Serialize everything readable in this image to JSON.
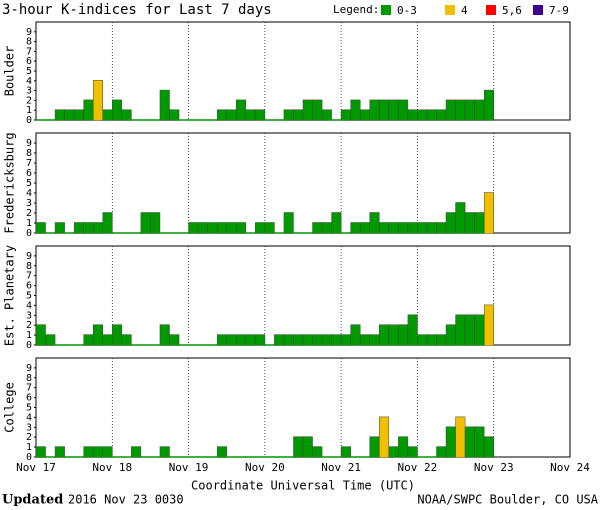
{
  "title": "3-hour K-indices for Last 7 days",
  "legend": {
    "title": "Legend:",
    "items": [
      {
        "label": "0-3",
        "color": "#009900"
      },
      {
        "label": "4",
        "color": "#f0c000"
      },
      {
        "label": "5,6",
        "color": "#ff0000"
      },
      {
        "label": "7-9",
        "color": "#400090"
      }
    ]
  },
  "x_label": "Coordinate Universal Time (UTC)",
  "footer": {
    "updated_label": "Updated",
    "updated": "2016 Nov 23 0030",
    "source": "NOAA/SWPC Boulder, CO USA"
  },
  "chart_data": [
    {
      "type": "bar",
      "y_label": "Boulder",
      "ylim": [
        0,
        10
      ],
      "yticks": [
        0,
        1,
        2,
        3,
        4,
        5,
        6,
        7,
        8,
        9
      ],
      "xlim": [
        0,
        7
      ],
      "xticks": [
        {
          "value": 0,
          "label": "Nov 17"
        },
        {
          "value": 1,
          "label": "Nov 18"
        },
        {
          "value": 2,
          "label": "Nov 19"
        },
        {
          "value": 3,
          "label": "Nov 20"
        },
        {
          "value": 4,
          "label": "Nov 21"
        },
        {
          "value": 5,
          "label": "Nov 22"
        },
        {
          "value": 6,
          "label": "Nov 23"
        },
        {
          "value": 7,
          "label": "Nov 24"
        }
      ],
      "values": [
        0,
        0,
        1,
        1,
        1,
        2,
        4,
        1,
        2,
        1,
        0,
        0,
        0,
        3,
        1,
        0,
        0,
        0,
        0,
        1,
        1,
        2,
        1,
        1,
        0,
        0,
        1,
        1,
        2,
        2,
        1,
        0,
        1,
        2,
        1,
        2,
        2,
        2,
        2,
        1,
        1,
        1,
        1,
        2,
        2,
        2,
        2,
        3
      ]
    },
    {
      "type": "bar",
      "y_label": "Fredericksburg",
      "ylim": [
        0,
        10
      ],
      "yticks": [
        0,
        1,
        2,
        3,
        4,
        5,
        6,
        7,
        8,
        9
      ],
      "xlim": [
        0,
        7
      ],
      "xticks": [
        {
          "value": 0,
          "label": "Nov 17"
        },
        {
          "value": 1,
          "label": "Nov 18"
        },
        {
          "value": 2,
          "label": "Nov 19"
        },
        {
          "value": 3,
          "label": "Nov 20"
        },
        {
          "value": 4,
          "label": "Nov 21"
        },
        {
          "value": 5,
          "label": "Nov 22"
        },
        {
          "value": 6,
          "label": "Nov 23"
        },
        {
          "value": 7,
          "label": "Nov 24"
        }
      ],
      "values": [
        1,
        0,
        1,
        0,
        1,
        1,
        1,
        2,
        0,
        0,
        0,
        2,
        2,
        0,
        0,
        0,
        1,
        1,
        1,
        1,
        1,
        1,
        0,
        1,
        1,
        0,
        2,
        0,
        0,
        1,
        1,
        2,
        0,
        1,
        1,
        2,
        1,
        1,
        1,
        1,
        1,
        1,
        1,
        2,
        3,
        2,
        2,
        4
      ]
    },
    {
      "type": "bar",
      "y_label": "Est. Planetary",
      "ylim": [
        0,
        10
      ],
      "yticks": [
        0,
        1,
        2,
        3,
        4,
        5,
        6,
        7,
        8,
        9
      ],
      "xlim": [
        0,
        7
      ],
      "xticks": [
        {
          "value": 0,
          "label": "Nov 17"
        },
        {
          "value": 1,
          "label": "Nov 18"
        },
        {
          "value": 2,
          "label": "Nov 19"
        },
        {
          "value": 3,
          "label": "Nov 20"
        },
        {
          "value": 4,
          "label": "Nov 21"
        },
        {
          "value": 5,
          "label": "Nov 22"
        },
        {
          "value": 6,
          "label": "Nov 23"
        },
        {
          "value": 7,
          "label": "Nov 24"
        }
      ],
      "values": [
        2,
        1,
        0,
        0,
        0,
        1,
        2,
        1,
        2,
        1,
        0,
        0,
        0,
        2,
        1,
        0,
        0,
        0,
        0,
        1,
        1,
        1,
        1,
        1,
        0,
        1,
        1,
        1,
        1,
        1,
        1,
        1,
        1,
        2,
        1,
        1,
        2,
        2,
        2,
        3,
        1,
        1,
        1,
        2,
        3,
        3,
        3,
        4
      ]
    },
    {
      "type": "bar",
      "y_label": "College",
      "ylim": [
        0,
        10
      ],
      "yticks": [
        0,
        1,
        2,
        3,
        4,
        5,
        6,
        7,
        8,
        9
      ],
      "xlim": [
        0,
        7
      ],
      "xticks": [
        {
          "value": 0,
          "label": "Nov 17"
        },
        {
          "value": 1,
          "label": "Nov 18"
        },
        {
          "value": 2,
          "label": "Nov 19"
        },
        {
          "value": 3,
          "label": "Nov 20"
        },
        {
          "value": 4,
          "label": "Nov 21"
        },
        {
          "value": 5,
          "label": "Nov 22"
        },
        {
          "value": 6,
          "label": "Nov 23"
        },
        {
          "value": 7,
          "label": "Nov 24"
        }
      ],
      "values": [
        1,
        0,
        1,
        0,
        0,
        1,
        1,
        1,
        0,
        0,
        1,
        0,
        0,
        1,
        0,
        0,
        0,
        0,
        0,
        1,
        0,
        0,
        0,
        0,
        0,
        0,
        0,
        2,
        2,
        1,
        0,
        0,
        1,
        0,
        0,
        2,
        4,
        1,
        2,
        1,
        0,
        0,
        1,
        3,
        4,
        3,
        3,
        2
      ]
    }
  ]
}
